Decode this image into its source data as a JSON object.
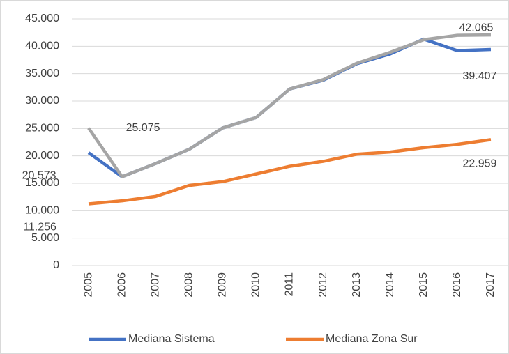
{
  "chart_data": {
    "type": "line",
    "categories": [
      "2005",
      "2006",
      "2007",
      "2008",
      "2009",
      "2010",
      "2011",
      "2012",
      "2013",
      "2014",
      "2015",
      "2016",
      "2017"
    ],
    "series": [
      {
        "name": "Mediana Sistema",
        "color": "#4472c4",
        "values": [
          20573,
          16200,
          18600,
          21200,
          25100,
          27000,
          32200,
          33800,
          36800,
          38600,
          41300,
          39200,
          39407
        ],
        "value_labels": [
          "20.573",
          null,
          null,
          null,
          null,
          null,
          null,
          null,
          null,
          null,
          null,
          null,
          "39.407"
        ]
      },
      {
        "name": "Mediana Zona Sur",
        "color": "#ed7d31",
        "values": [
          11256,
          11800,
          12600,
          14600,
          15300,
          16700,
          18100,
          19000,
          20300,
          20700,
          21500,
          22100,
          22959
        ],
        "value_labels": [
          "11.256",
          null,
          null,
          null,
          null,
          null,
          null,
          null,
          null,
          null,
          null,
          null,
          "22.959"
        ]
      },
      {
        "color": "#a5a5a5",
        "values": [
          25075,
          16200,
          18600,
          21200,
          25100,
          27000,
          32200,
          33900,
          36900,
          38900,
          41200,
          42000,
          42065
        ],
        "value_labels": [
          "25.075",
          null,
          null,
          null,
          null,
          null,
          null,
          null,
          null,
          null,
          null,
          null,
          "42.065"
        ]
      }
    ],
    "ylim": [
      0,
      45000
    ],
    "yticks": [
      0,
      {
        "value": 5000,
        "label": "5.000"
      },
      {
        "value": 10000,
        "label": "10.000"
      },
      {
        "value": 15000,
        "label": "15.000"
      },
      {
        "value": 20000,
        "label": "20.000"
      },
      {
        "value": 25000,
        "label": "25.000"
      },
      {
        "value": 30000,
        "label": "30.000"
      },
      {
        "value": 35000,
        "label": "35.000"
      },
      {
        "value": 40000,
        "label": "40.000"
      },
      {
        "value": 45000,
        "label": "45.000"
      }
    ],
    "grid": true,
    "legend": "bottom"
  }
}
